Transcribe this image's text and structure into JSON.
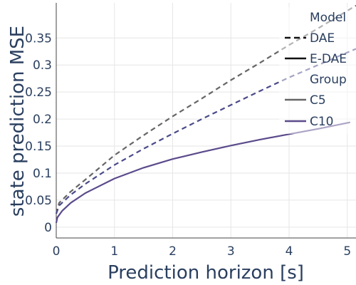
{
  "chart_data": {
    "type": "line",
    "xlabel": "Prediction horizon [s]",
    "ylabel": "state prediction MSE",
    "xlim": [
      0,
      5.15
    ],
    "ylim": [
      -0.02,
      0.415
    ],
    "x_ticks": [
      "0",
      "1",
      "2",
      "3",
      "4",
      "5"
    ],
    "y_ticks": [
      "0",
      "0.05",
      "0.1",
      "0.15",
      "0.2",
      "0.25",
      "0.3",
      "0.35"
    ],
    "grid": true,
    "legend": {
      "placement": "top-right",
      "model_title": "Model",
      "model_entries": [
        {
          "label": "DAE",
          "dash": "dashed"
        },
        {
          "label": "E-DAE",
          "dash": "solid"
        }
      ],
      "group_title": "Group",
      "group_entries": [
        {
          "label": "C5",
          "color": "#666666"
        },
        {
          "label": "C10",
          "color": "#5b4a8b"
        }
      ]
    },
    "series": [
      {
        "model": "DAE",
        "group": "C5",
        "color": "#666666",
        "dash": "dashed",
        "x": [
          0,
          0.05,
          0.25,
          0.5,
          1,
          1.5,
          2,
          2.5,
          3,
          3.5,
          4,
          4.5,
          5.15
        ],
        "y": [
          0.025,
          0.045,
          0.066,
          0.088,
          0.133,
          0.17,
          0.205,
          0.238,
          0.272,
          0.304,
          0.337,
          0.368,
          0.41
        ]
      },
      {
        "model": "DAE",
        "group": "C10",
        "color": "#4a4a8a",
        "dash": "dashed",
        "x": [
          0,
          0.05,
          0.25,
          0.5,
          1,
          1.5,
          2,
          2.5,
          3,
          3.5,
          4,
          4.5,
          5.15
        ],
        "y": [
          0.025,
          0.04,
          0.06,
          0.08,
          0.115,
          0.145,
          0.173,
          0.2,
          0.226,
          0.252,
          0.277,
          0.3,
          0.33
        ]
      },
      {
        "model": "E-DAE",
        "group": "C10",
        "color": "#5b4a8b",
        "dash": "solid",
        "x": [
          0,
          0.02,
          0.1,
          0.25,
          0.5,
          1,
          1.5,
          2,
          2.5,
          3,
          3.5,
          4,
          4.5,
          5.05
        ],
        "y": [
          0.008,
          0.018,
          0.03,
          0.045,
          0.063,
          0.09,
          0.11,
          0.126,
          0.139,
          0.151,
          0.162,
          0.172,
          0.182,
          0.194
        ]
      }
    ]
  }
}
